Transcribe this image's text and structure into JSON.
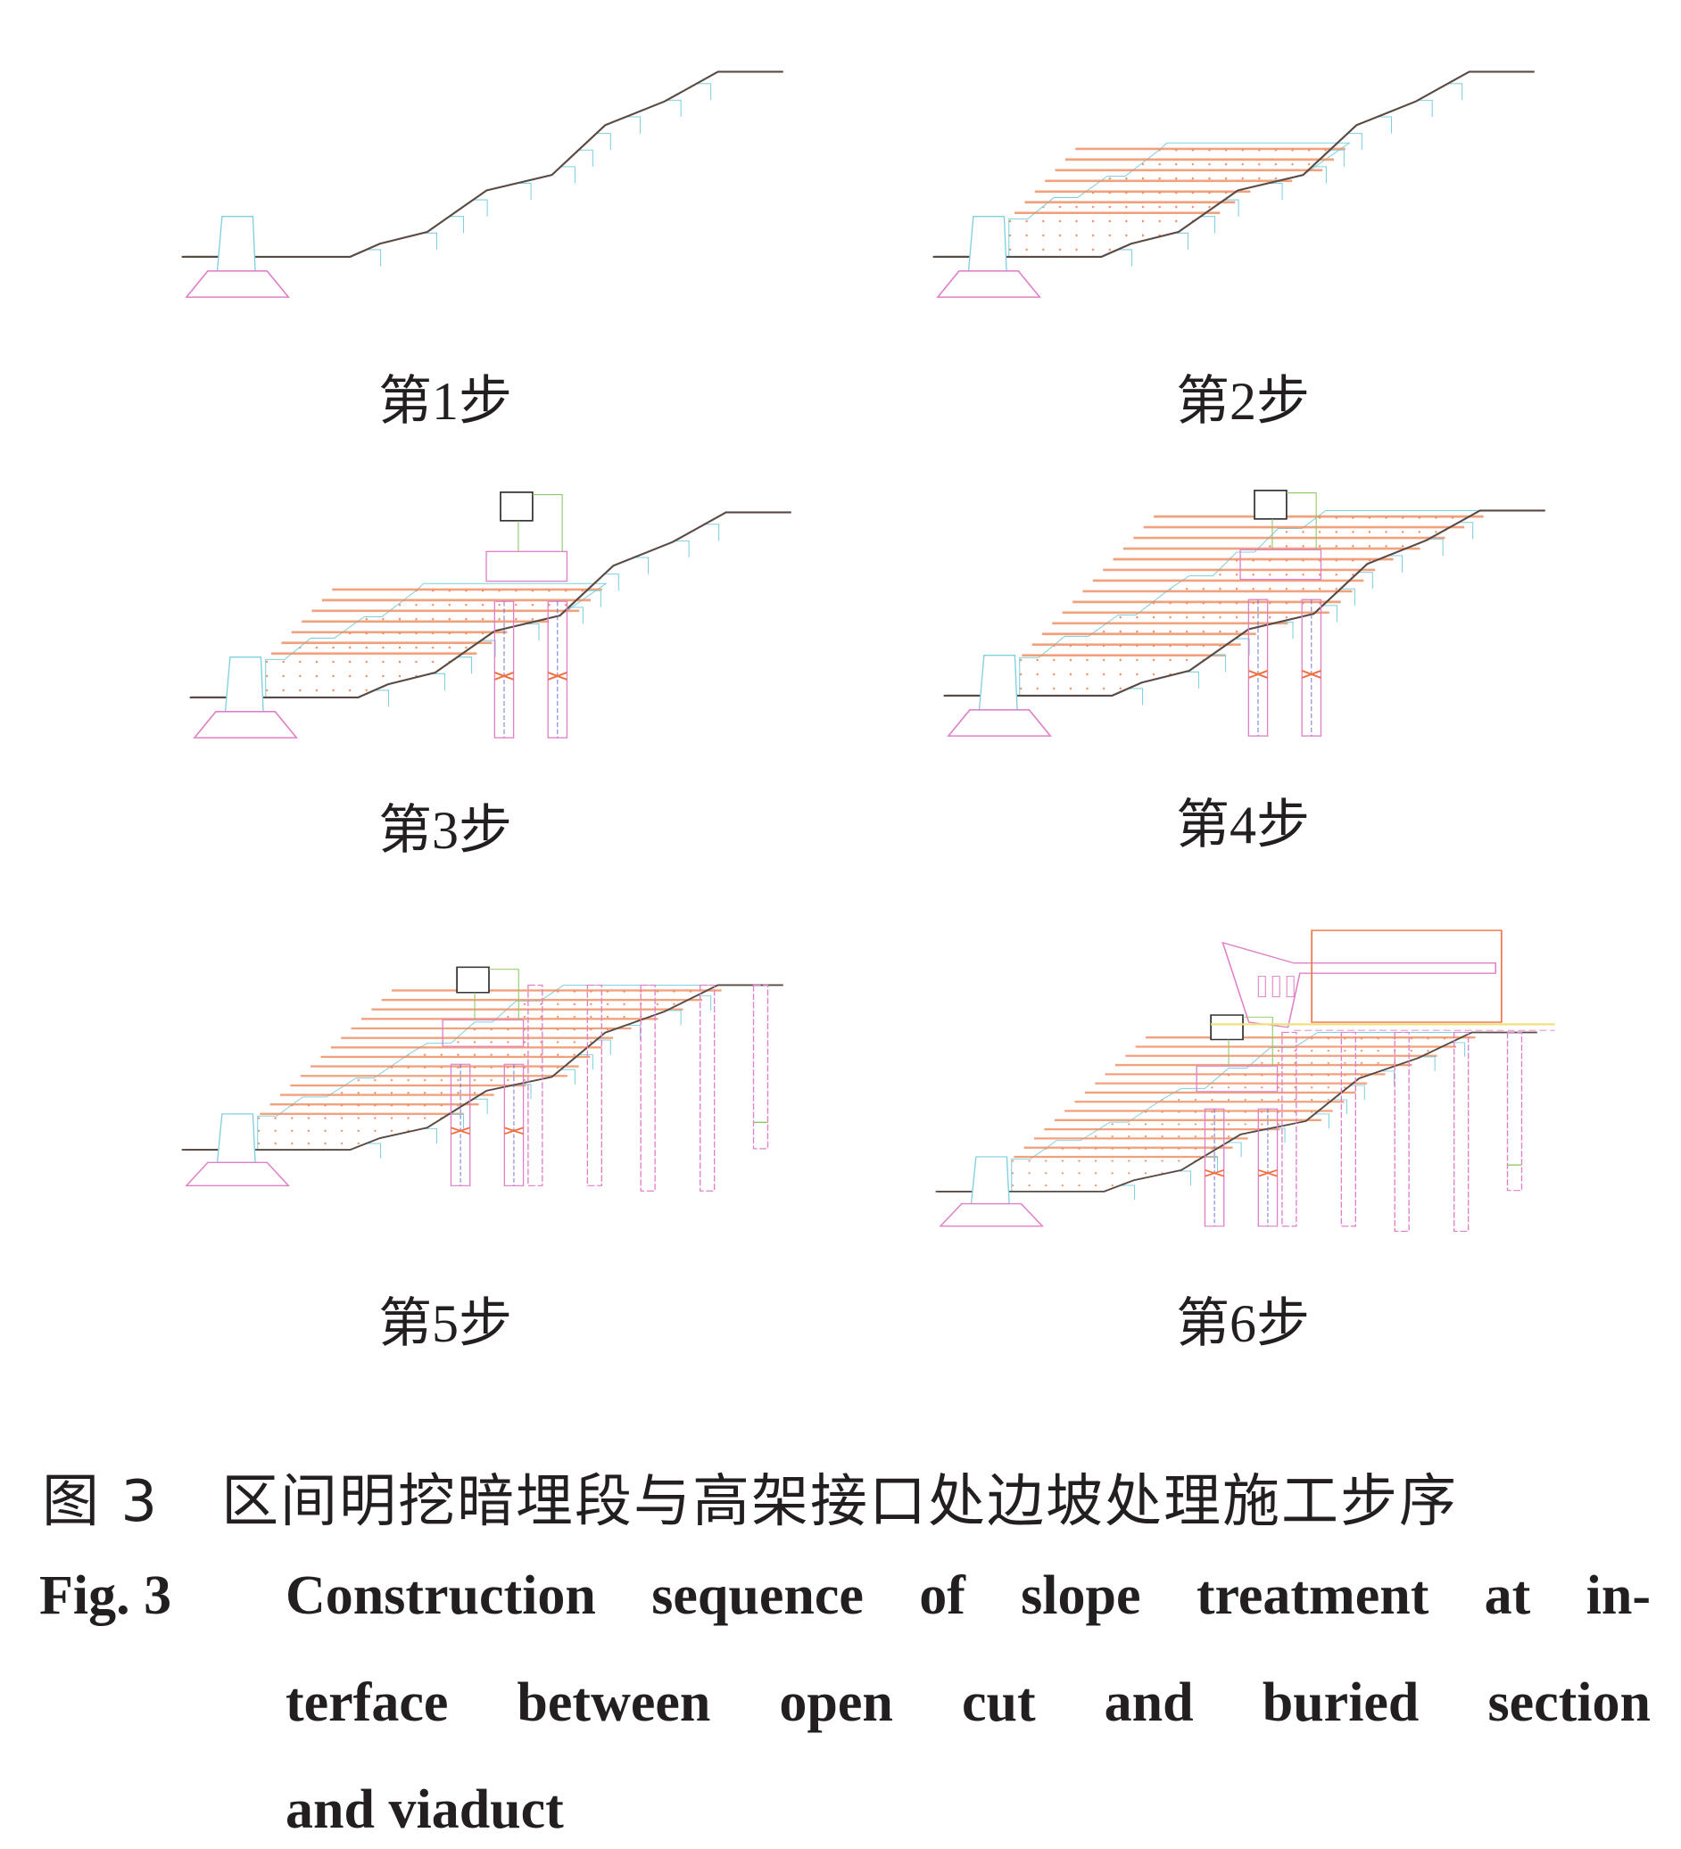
{
  "figure": {
    "steps": [
      {
        "step": 1,
        "label": "第1步"
      },
      {
        "step": 2,
        "label": "第2步"
      },
      {
        "step": 3,
        "label": "第3步"
      },
      {
        "step": 4,
        "label": "第4步"
      },
      {
        "step": 5,
        "label": "第5步"
      },
      {
        "step": 6,
        "label": "第6步"
      }
    ],
    "colors": {
      "ground": "#5a4a44",
      "fill_line": "#f08a5d",
      "cyan": "#7fd0e0",
      "pink": "#e080c8",
      "green": "#8cc864",
      "orange": "#f07040"
    }
  },
  "caption": {
    "cn_number": "图 3",
    "cn_text": "区间明挖暗埋段与高架接口处边坡处理施工步序",
    "en_number": "Fig. 3",
    "en_lines": [
      "Construction sequence of slope treatment at in-",
      "terface between open cut and buried section",
      "and viaduct"
    ]
  }
}
